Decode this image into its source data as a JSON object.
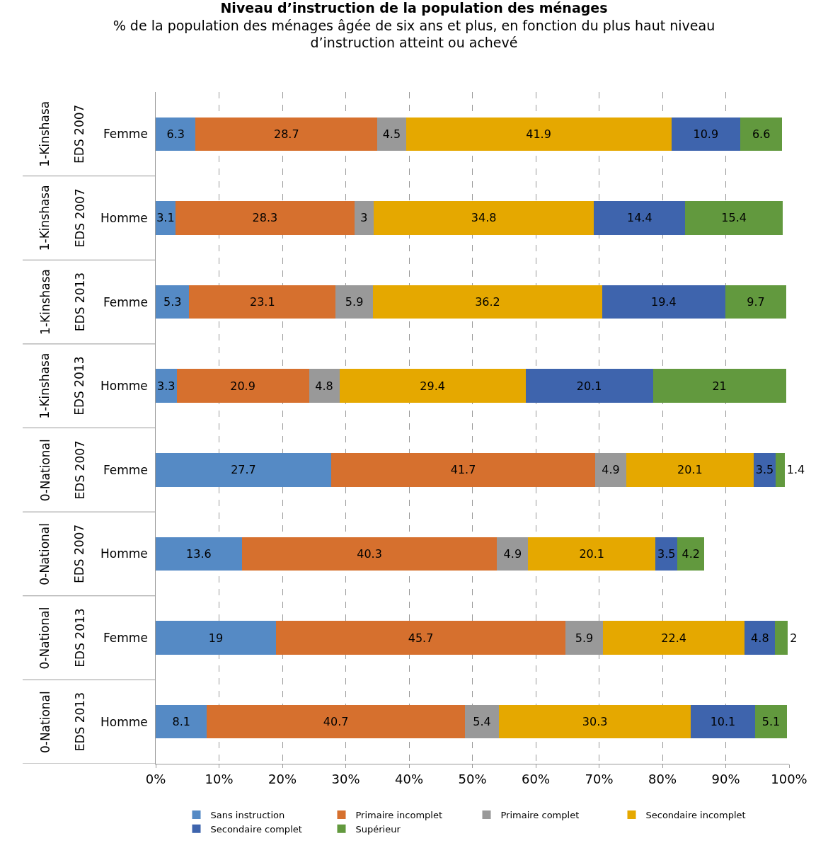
{
  "chart_data": {
    "type": "bar",
    "orientation": "horizontal",
    "stacked": true,
    "title": "Niveau d’instruction de la population des ménages",
    "subtitle": "% de la population des ménages âgée de six ans et plus, en fonction du plus haut niveau d’instruction atteint ou achevé",
    "categories": [
      "1-Kinshasa\nEDS 2007\nFemme",
      "1-Kinshasa\nEDS 2007\nHomme",
      "1-Kinshasa\nEDS 2013\nFemme",
      "1-Kinshasa\nEDS 2013\nHomme",
      "0-National\nEDS 2007\nFemme",
      "0-National\nEDS 2007\nHomme",
      "0-National\nEDS 2013\nFemme",
      "0-National\nEDS 2013\nHomme"
    ],
    "series": [
      {
        "name": "Sans instruction",
        "color": "#558ac5",
        "values": [
          6.3,
          3.1,
          5.3,
          3.3,
          27.7,
          13.6,
          19,
          8.1
        ]
      },
      {
        "name": "Primaire incomplet",
        "color": "#d6702e",
        "values": [
          28.7,
          28.3,
          23.1,
          20.9,
          41.7,
          40.3,
          45.7,
          40.7
        ]
      },
      {
        "name": "Primaire complet",
        "color": "#999999",
        "values": [
          4.5,
          3,
          5.9,
          4.8,
          4.9,
          4.9,
          5.9,
          5.4
        ]
      },
      {
        "name": "Secondaire incomplet",
        "color": "#e5a800",
        "values": [
          41.9,
          34.8,
          36.2,
          29.4,
          20.1,
          20.1,
          22.4,
          30.3
        ]
      },
      {
        "name": "Secondaire complet",
        "color": "#3e64ad",
        "values": [
          10.9,
          14.4,
          19.4,
          20.1,
          3.5,
          3.5,
          4.8,
          10.1
        ]
      },
      {
        "name": "Supérieur",
        "color": "#62993e",
        "values": [
          6.6,
          15.4,
          9.7,
          21,
          1.4,
          4.2,
          2,
          5.1
        ]
      }
    ],
    "xlim": [
      0,
      100
    ],
    "xticks": [
      {
        "value": 0,
        "label": "0%"
      },
      {
        "value": 10,
        "label": "10%"
      },
      {
        "value": 20,
        "label": "20%"
      },
      {
        "value": 30,
        "label": "30%"
      },
      {
        "value": 40,
        "label": "40%"
      },
      {
        "value": 50,
        "label": "50%"
      },
      {
        "value": 60,
        "label": "60%"
      },
      {
        "value": 70,
        "label": "70%"
      },
      {
        "value": 80,
        "label": "80%"
      },
      {
        "value": 90,
        "label": "90%"
      },
      {
        "value": 100,
        "label": "100%"
      }
    ],
    "grid": "x",
    "legend": "bottom",
    "data_labels": true
  }
}
